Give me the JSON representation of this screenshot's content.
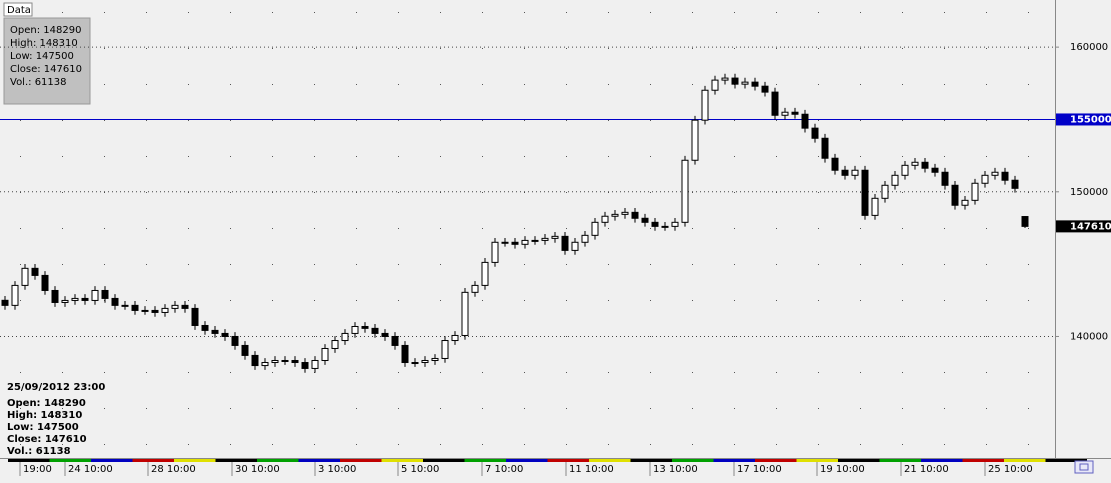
{
  "chart_data": {
    "type": "candlestick",
    "tab_label": "Data",
    "info_box": [
      "Open: 148290",
      "High: 148310",
      "Low: 147500",
      "Close: 147610",
      "Vol.: 61138"
    ],
    "cursor_info": {
      "date": "25/09/2012 23:00",
      "lines": [
        "Open: 148290",
        "High: 148310",
        "Low: 147500",
        "Close: 147610",
        "Vol.: 61138"
      ]
    },
    "xlim": [
      -0.5,
      105
    ],
    "xticks": [
      {
        "value": 1.5,
        "label": "19:00"
      },
      {
        "value": 6,
        "label": "24 10:00"
      },
      {
        "value": 14.3,
        "label": "28 10:00"
      },
      {
        "value": 22.7,
        "label": "30 10:00"
      },
      {
        "value": 31,
        "label": "3 10:00"
      },
      {
        "value": 39.3,
        "label": "5 10:00"
      },
      {
        "value": 47.7,
        "label": "7 10:00"
      },
      {
        "value": 56.1,
        "label": "11 10:00"
      },
      {
        "value": 64.5,
        "label": "13 10:00"
      },
      {
        "value": 72.9,
        "label": "17 10:00"
      },
      {
        "value": 81.2,
        "label": "19 10:00"
      },
      {
        "value": 89.6,
        "label": "21 10:00"
      },
      {
        "value": 98,
        "label": "25 10:00"
      }
    ],
    "ylim": [
      131600,
      163050
    ],
    "yticks": [
      140000,
      150000,
      160000
    ],
    "grid": true,
    "marker_line": 155000,
    "marker_color": "#0000c8",
    "up_color": "#ffffff",
    "down_color": "#000000",
    "open": [
      142500,
      142150,
      143530,
      144710,
      144220,
      143180,
      142350,
      142490,
      142630,
      142490,
      143180,
      142630,
      142150,
      142150,
      141800,
      141800,
      141660,
      141940,
      142150,
      141940,
      140760,
      140420,
      140210,
      140000,
      139380,
      138690,
      137990,
      138200,
      138340,
      138340,
      138200,
      137790,
      138340,
      139170,
      139720,
      140210,
      140690,
      140560,
      140210,
      140000,
      139380,
      138200,
      138200,
      138340,
      138480,
      139720,
      140070,
      143050,
      143530,
      145120,
      146510,
      146510,
      146370,
      146640,
      146640,
      146780,
      146920,
      145950,
      146510,
      146990,
      147890,
      148310,
      148440,
      148580,
      148170,
      147890,
      147610,
      147610,
      147890,
      152180,
      154950,
      157020,
      157720,
      157860,
      157440,
      157580,
      157300,
      156890,
      155290,
      155500,
      155360,
      154400,
      153700,
      152320,
      151490,
      151140,
      151490,
      148370,
      149550,
      150450,
      151140,
      151830,
      152040,
      151630,
      151350,
      150450,
      149070,
      149410,
      150590,
      151140,
      151350,
      150800,
      148290
    ],
    "high": [
      142800,
      143830,
      145010,
      145010,
      144520,
      143480,
      142790,
      142930,
      142930,
      143480,
      143480,
      142930,
      142450,
      142450,
      142100,
      142100,
      142240,
      142450,
      142450,
      142240,
      141060,
      140720,
      140510,
      140300,
      139680,
      138990,
      138500,
      138640,
      138640,
      138640,
      138500,
      138640,
      139470,
      140020,
      140510,
      140990,
      140990,
      140860,
      140510,
      140300,
      139680,
      138500,
      138640,
      138780,
      140020,
      140370,
      143350,
      143830,
      145420,
      146810,
      146810,
      146810,
      146940,
      146940,
      147080,
      147220,
      147220,
      146810,
      147290,
      148190,
      148610,
      148740,
      148880,
      148880,
      148470,
      148190,
      147910,
      148190,
      152480,
      155250,
      157320,
      158020,
      158160,
      158160,
      157880,
      157880,
      157600,
      157190,
      155800,
      155800,
      155660,
      154700,
      154000,
      152620,
      151790,
      151790,
      151790,
      149850,
      150750,
      151440,
      152130,
      152340,
      152340,
      151930,
      151650,
      150750,
      149710,
      150890,
      151440,
      151650,
      151650,
      151100,
      148310
    ],
    "low": [
      141850,
      141850,
      143230,
      143920,
      142880,
      142050,
      142050,
      142190,
      142190,
      142190,
      142330,
      141850,
      141850,
      141500,
      141500,
      141360,
      141360,
      141640,
      141640,
      140460,
      140120,
      139910,
      139700,
      139080,
      138390,
      137690,
      137690,
      137900,
      138040,
      137900,
      137490,
      137490,
      138040,
      138870,
      139420,
      139910,
      140260,
      139910,
      139700,
      139080,
      137900,
      137900,
      137900,
      138040,
      138180,
      139420,
      139770,
      142750,
      143230,
      144820,
      146210,
      146070,
      146070,
      146340,
      146340,
      146480,
      145650,
      145650,
      146210,
      146690,
      147590,
      148010,
      148140,
      147870,
      147590,
      147310,
      147310,
      147310,
      147590,
      151880,
      154650,
      156720,
      157420,
      157140,
      157140,
      157000,
      156590,
      154990,
      154990,
      155060,
      154100,
      153400,
      152020,
      151190,
      150840,
      150840,
      148070,
      148070,
      149250,
      150150,
      150840,
      151530,
      151330,
      151050,
      150150,
      148770,
      148770,
      149110,
      150290,
      150840,
      150500,
      149940,
      147500
    ],
    "close": [
      142150,
      143530,
      144710,
      144220,
      143180,
      142350,
      142490,
      142630,
      142490,
      143180,
      142630,
      142150,
      142150,
      141800,
      141800,
      141660,
      141940,
      142150,
      141940,
      140760,
      140420,
      140210,
      140000,
      139380,
      138690,
      137990,
      138200,
      138340,
      138340,
      138200,
      137790,
      138340,
      139170,
      139720,
      140210,
      140690,
      140560,
      140210,
      140000,
      139380,
      138200,
      138200,
      138340,
      138480,
      139720,
      140070,
      143050,
      143530,
      145120,
      146510,
      146510,
      146370,
      146640,
      146640,
      146780,
      146920,
      145950,
      146510,
      146990,
      147890,
      148310,
      148440,
      148580,
      148170,
      147890,
      147610,
      147610,
      147890,
      152180,
      154950,
      157020,
      157720,
      157860,
      157440,
      157580,
      157300,
      156890,
      155290,
      155500,
      155360,
      154400,
      153700,
      152320,
      151490,
      151140,
      151490,
      148370,
      149550,
      150450,
      151140,
      151830,
      152040,
      151630,
      151350,
      150450,
      149070,
      149410,
      150590,
      151140,
      151350,
      150800,
      150240,
      147610
    ]
  }
}
